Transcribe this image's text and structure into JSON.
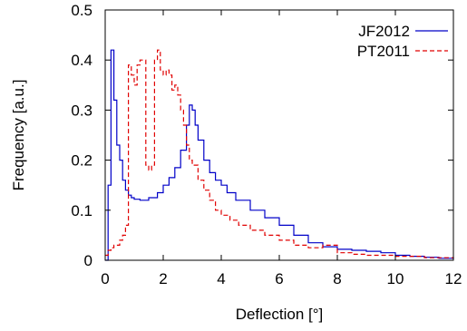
{
  "chart_data": {
    "type": "line",
    "step": true,
    "xlabel": "Deflection [°]",
    "ylabel": "Frequency [a.u.]",
    "xlim": [
      0,
      12
    ],
    "ylim": [
      0,
      0.5
    ],
    "xticks": [
      "0",
      "2",
      "4",
      "6",
      "8",
      "10",
      "12"
    ],
    "yticks": [
      "0",
      "0.1",
      "0.2",
      "0.3",
      "0.4",
      "0.5"
    ],
    "grid": false,
    "legend_position": "top-right",
    "series": [
      {
        "name": "JF2012",
        "color": "#0000c8",
        "dash": "solid",
        "points": [
          [
            0.0,
            0.0
          ],
          [
            0.1,
            0.15
          ],
          [
            0.2,
            0.42
          ],
          [
            0.3,
            0.32
          ],
          [
            0.4,
            0.23
          ],
          [
            0.5,
            0.2
          ],
          [
            0.6,
            0.16
          ],
          [
            0.7,
            0.14
          ],
          [
            0.8,
            0.13
          ],
          [
            0.9,
            0.125
          ],
          [
            1.0,
            0.122
          ],
          [
            1.2,
            0.12
          ],
          [
            1.5,
            0.125
          ],
          [
            1.8,
            0.135
          ],
          [
            2.0,
            0.15
          ],
          [
            2.2,
            0.165
          ],
          [
            2.4,
            0.185
          ],
          [
            2.6,
            0.22
          ],
          [
            2.8,
            0.27
          ],
          [
            2.9,
            0.31
          ],
          [
            3.0,
            0.3
          ],
          [
            3.1,
            0.27
          ],
          [
            3.2,
            0.24
          ],
          [
            3.4,
            0.2
          ],
          [
            3.6,
            0.175
          ],
          [
            3.8,
            0.16
          ],
          [
            4.0,
            0.15
          ],
          [
            4.2,
            0.135
          ],
          [
            4.5,
            0.12
          ],
          [
            5.0,
            0.1
          ],
          [
            5.5,
            0.085
          ],
          [
            6.0,
            0.07
          ],
          [
            6.5,
            0.05
          ],
          [
            7.0,
            0.035
          ],
          [
            7.5,
            0.027
          ],
          [
            8.0,
            0.022
          ],
          [
            8.5,
            0.02
          ],
          [
            9.0,
            0.018
          ],
          [
            9.5,
            0.015
          ],
          [
            10.0,
            0.01
          ],
          [
            10.5,
            0.008
          ],
          [
            11.0,
            0.006
          ],
          [
            11.5,
            0.004
          ],
          [
            12.0,
            0.003
          ]
        ]
      },
      {
        "name": "PT2011",
        "color": "#e00000",
        "dash": "dashed",
        "points": [
          [
            0.0,
            0.01
          ],
          [
            0.1,
            0.02
          ],
          [
            0.2,
            0.025
          ],
          [
            0.3,
            0.03
          ],
          [
            0.5,
            0.04
          ],
          [
            0.6,
            0.05
          ],
          [
            0.7,
            0.07
          ],
          [
            0.8,
            0.39
          ],
          [
            0.9,
            0.37
          ],
          [
            1.0,
            0.35
          ],
          [
            1.1,
            0.39
          ],
          [
            1.2,
            0.4
          ],
          [
            1.35,
            0.4
          ],
          [
            1.4,
            0.19
          ],
          [
            1.5,
            0.18
          ],
          [
            1.6,
            0.19
          ],
          [
            1.7,
            0.4
          ],
          [
            1.8,
            0.42
          ],
          [
            1.9,
            0.38
          ],
          [
            2.0,
            0.37
          ],
          [
            2.1,
            0.38
          ],
          [
            2.2,
            0.37
          ],
          [
            2.3,
            0.34
          ],
          [
            2.4,
            0.35
          ],
          [
            2.5,
            0.33
          ],
          [
            2.6,
            0.3
          ],
          [
            2.7,
            0.27
          ],
          [
            2.8,
            0.23
          ],
          [
            2.9,
            0.2
          ],
          [
            3.0,
            0.19
          ],
          [
            3.2,
            0.16
          ],
          [
            3.4,
            0.14
          ],
          [
            3.6,
            0.12
          ],
          [
            3.8,
            0.1
          ],
          [
            4.0,
            0.09
          ],
          [
            4.3,
            0.08
          ],
          [
            4.6,
            0.07
          ],
          [
            5.0,
            0.06
          ],
          [
            5.5,
            0.05
          ],
          [
            6.0,
            0.04
          ],
          [
            6.5,
            0.03
          ],
          [
            7.0,
            0.025
          ],
          [
            7.5,
            0.03
          ],
          [
            8.0,
            0.015
          ],
          [
            8.5,
            0.012
          ],
          [
            9.0,
            0.01
          ],
          [
            10.0,
            0.008
          ],
          [
            11.0,
            0.005
          ],
          [
            12.0,
            0.003
          ]
        ]
      }
    ]
  }
}
